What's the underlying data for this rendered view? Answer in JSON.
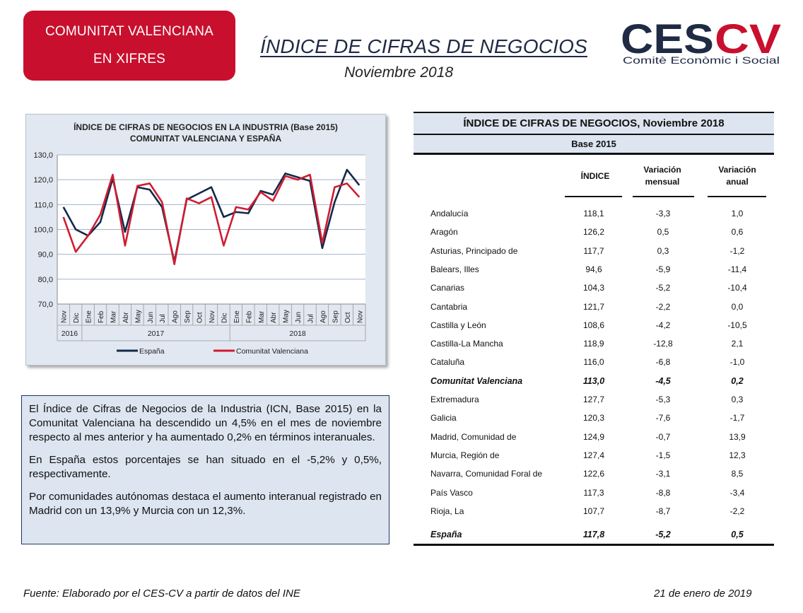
{
  "header": {
    "badge_line1": "COMUNITAT VALENCIANA",
    "badge_line2": "EN XIFRES",
    "title": "ÍNDICE DE CIFRAS DE NEGOCIOS",
    "subtitle": "Noviembre 2018",
    "logo_main_left": "CES",
    "logo_main_right": "CV",
    "logo_tagline": "Comitè Econòmic i Social",
    "colors": {
      "badge": "#c8102e",
      "logo_navy": "#1f2a44",
      "logo_red": "#c8102e"
    }
  },
  "chart_data": {
    "type": "line",
    "title": "ÍNDICE DE CIFRAS DE NEGOCIOS  EN LA INDUSTRIA (Base 2015)",
    "subtitle": "COMUNITAT  VALENCIANA  Y ESPAÑA",
    "categories": [
      "Nov",
      "Dic",
      "Ene",
      "Feb",
      "Mar",
      "Abr",
      "May",
      "Jun",
      "Jul",
      "Ago",
      "Sep",
      "Oct",
      "Nov",
      "Dic",
      "Ene",
      "Feb",
      "Mar",
      "Abr",
      "May",
      "Jun",
      "Jul",
      "Ago",
      "Sep",
      "Oct",
      "Nov"
    ],
    "year_groups": [
      {
        "label": "2016",
        "start": 0,
        "end": 1
      },
      {
        "label": "2017",
        "start": 2,
        "end": 13
      },
      {
        "label": "2018",
        "start": 14,
        "end": 24
      }
    ],
    "ylim": [
      70,
      130
    ],
    "yticks": [
      "70,0",
      "80,0",
      "90,0",
      "100,0",
      "110,0",
      "120,0",
      "130,0"
    ],
    "grid": true,
    "legend_position": "bottom",
    "series": [
      {
        "name": "España",
        "color": "#13294b",
        "values": [
          109,
          100,
          97.5,
          103,
          120.5,
          99,
          117,
          116,
          109,
          87,
          112,
          114.5,
          117,
          105,
          107,
          106.5,
          115.5,
          114,
          122.5,
          121,
          119.5,
          92.5,
          111,
          124,
          117.8
        ]
      },
      {
        "name": "Comunitat Valenciana",
        "color": "#d01c31",
        "values": [
          105,
          91,
          97.5,
          106,
          122,
          93.5,
          117.5,
          118.5,
          111,
          86,
          112.5,
          110.5,
          113,
          93.5,
          109,
          108,
          115,
          111.5,
          121.5,
          120,
          122,
          94.5,
          117,
          118.5,
          113
        ]
      }
    ]
  },
  "text": {
    "p1": "El Índice de Cifras de Negocios de la Industria (ICN, Base 2015) en la Comunitat Valenciana ha descendido un 4,5% en el mes de noviembre respecto al mes anterior y ha aumentado 0,2% en términos interanuales.",
    "p2": "En España estos porcentajes se han situado en el -5,2% y 0,5%, respectivamente.",
    "p3": "Por comunidades autónomas destaca el aumento interanual registrado en Madrid con un 13,9% y Murcia con un 12,3%."
  },
  "table": {
    "title": "ÍNDICE DE CIFRAS DE NEGOCIOS, Noviembre 2018",
    "base": "Base 2015",
    "col_index": "ÍNDICE",
    "col_mensual_1": "Variación",
    "col_mensual_2": "mensual",
    "col_anual_1": "Variación",
    "col_anual_2": "anual",
    "rows": [
      {
        "name": "Andalucía",
        "indice": "118,1",
        "mensual": "-3,3",
        "anual": "1,0"
      },
      {
        "name": "Aragón",
        "indice": "126,2",
        "mensual": "0,5",
        "anual": "0,6"
      },
      {
        "name": "Asturias, Principado de",
        "indice": "117,7",
        "mensual": "0,3",
        "anual": "-1,2"
      },
      {
        "name": "Balears, Illes",
        "indice": "94,6",
        "mensual": "-5,9",
        "anual": "-11,4"
      },
      {
        "name": "Canarias",
        "indice": "104,3",
        "mensual": "-5,2",
        "anual": "-10,4"
      },
      {
        "name": "Cantabria",
        "indice": "121,7",
        "mensual": "-2,2",
        "anual": "0,0"
      },
      {
        "name": "Castilla y León",
        "indice": "108,6",
        "mensual": "-4,2",
        "anual": "-10,5"
      },
      {
        "name": "Castilla-La Mancha",
        "indice": "118,9",
        "mensual": "-12,8",
        "anual": "2,1"
      },
      {
        "name": "Cataluña",
        "indice": "116,0",
        "mensual": "-6,8",
        "anual": "-1,0"
      },
      {
        "name": "Comunitat Valenciana",
        "indice": "113,0",
        "mensual": "-4,5",
        "anual": "0,2",
        "bold": true
      },
      {
        "name": "Extremadura",
        "indice": "127,7",
        "mensual": "-5,3",
        "anual": "0,3"
      },
      {
        "name": "Galicia",
        "indice": "120,3",
        "mensual": "-7,6",
        "anual": "-1,7"
      },
      {
        "name": "Madrid, Comunidad de",
        "indice": "124,9",
        "mensual": "-0,7",
        "anual": "13,9"
      },
      {
        "name": "Murcia, Región de",
        "indice": "127,4",
        "mensual": "-1,5",
        "anual": "12,3"
      },
      {
        "name": "Navarra, Comunidad Foral de",
        "indice": "122,6",
        "mensual": "-3,1",
        "anual": "8,5"
      },
      {
        "name": "País Vasco",
        "indice": "117,3",
        "mensual": "-8,8",
        "anual": "-3,4"
      },
      {
        "name": "Rioja, La",
        "indice": "107,7",
        "mensual": "-8,7",
        "anual": "-2,2"
      },
      {
        "name": "España",
        "indice": "117,8",
        "mensual": "-5,2",
        "anual": "0,5",
        "bold": true
      }
    ]
  },
  "footer": {
    "source": "Fuente: Elaborado por el CES-CV a partir de datos del INE",
    "date": "21 de enero de 2019"
  }
}
